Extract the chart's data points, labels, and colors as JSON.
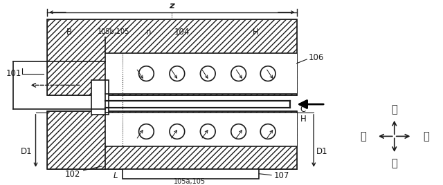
{
  "bg_color": "#ffffff",
  "line_color": "#1a1a1a",
  "fig_width": 6.4,
  "fig_height": 2.68,
  "labels": {
    "z": "z",
    "B": "B",
    "105b105": "105b,105",
    "n": "n",
    "104": "104",
    "H_top": "H",
    "106": "106",
    "101": "101",
    "D1_left": "D1",
    "D1_right": "D1",
    "102": "102",
    "L": "L",
    "107": "107",
    "105a105": "105a,105",
    "C": "C",
    "H_right": "H",
    "mae": "前",
    "ato": "後",
    "ue": "上",
    "shita": "下"
  }
}
